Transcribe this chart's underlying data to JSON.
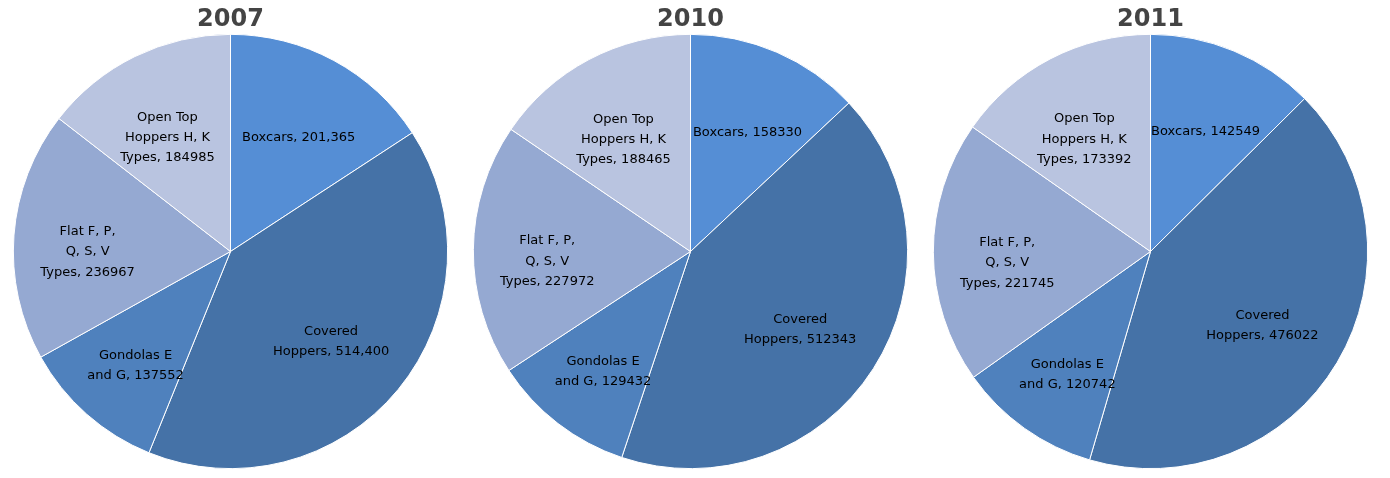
{
  "chart_data": [
    {
      "type": "pie",
      "title": "2007",
      "categories": [
        "Boxcars",
        "Covered Hoppers",
        "Gondolas E and G",
        "Flat F, P, Q, S, V Types",
        "Open Top Hoppers H, K Types"
      ],
      "values": [
        201365,
        514400,
        137552,
        236967,
        184985
      ],
      "value_labels": [
        "201,365",
        "514,400",
        "137552",
        "236967",
        "184985"
      ],
      "colors": [
        "#558ed5",
        "#4572a7",
        "#4f81bd",
        "#95a9d2",
        "#b9c4e0"
      ]
    },
    {
      "type": "pie",
      "title": "2010",
      "categories": [
        "Boxcars",
        "Covered Hoppers",
        "Gondolas E and G",
        "Flat F, P, Q, S, V Types",
        "Open Top Hoppers H, K Types"
      ],
      "values": [
        158330,
        512343,
        129432,
        227972,
        188465
      ],
      "value_labels": [
        "158330",
        "512343",
        "129432",
        "227972",
        "188465"
      ],
      "colors": [
        "#558ed5",
        "#4572a7",
        "#4f81bd",
        "#95a9d2",
        "#b9c4e0"
      ]
    },
    {
      "type": "pie",
      "title": "2011",
      "categories": [
        "Boxcars",
        "Covered Hoppers",
        "Gondolas E and G",
        "Flat F, P, Q, S, V Types",
        "Open Top Hoppers H, K Types"
      ],
      "values": [
        142549,
        476022,
        120742,
        221745,
        173392
      ],
      "value_labels": [
        "142549",
        "476022",
        "120742",
        "221745",
        "173392"
      ],
      "colors": [
        "#558ed5",
        "#4572a7",
        "#4f81bd",
        "#95a9d2",
        "#b9c4e0"
      ]
    }
  ]
}
